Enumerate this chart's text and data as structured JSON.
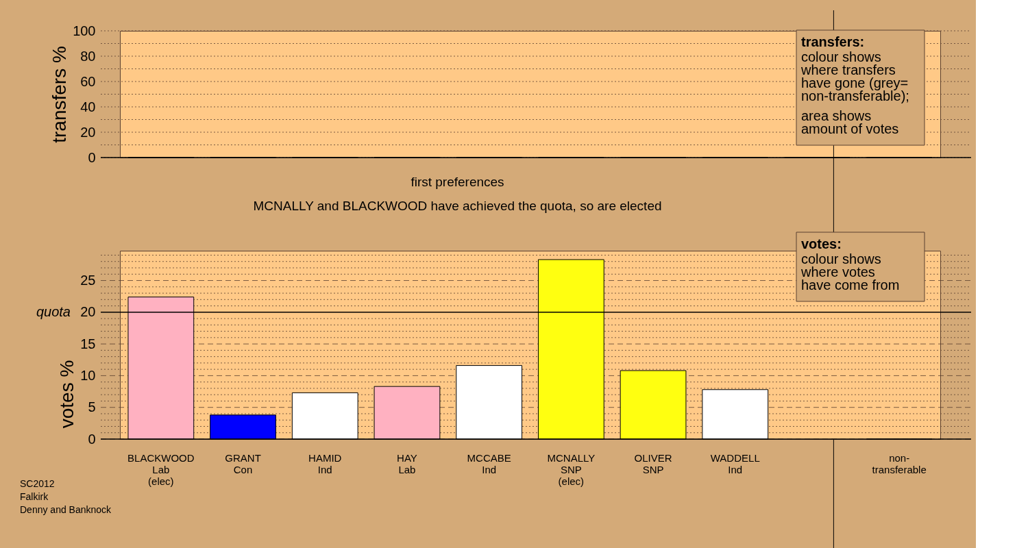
{
  "chart_data": [
    {
      "type": "bar",
      "ylabel": "transfers %",
      "categories": [
        null,
        null,
        null,
        null,
        null,
        null,
        null,
        null,
        null,
        null
      ],
      "values": [
        0,
        0,
        0,
        0,
        0,
        0,
        0,
        0,
        0,
        0
      ],
      "ylim": [
        0,
        100
      ],
      "yticks": [
        0,
        {
          "value": 10,
          "label": null
        },
        20,
        {
          "value": 30,
          "label": null
        },
        40,
        {
          "value": 50,
          "label": null
        },
        60,
        {
          "value": 70,
          "label": null
        },
        80,
        {
          "value": 90,
          "label": null
        },
        100
      ],
      "grid": "y",
      "tick_labels": "y",
      "annotations": [
        "transfers:\ncolour shows\nwhere transfers\nhave gone (grey=\nnon-transferable);\n\narea shows\namount of votes"
      ]
    },
    {
      "type": "bar",
      "title": "first preferences",
      "subtitle": "MCNALLY and BLACKWOOD have achieved the quota, so are elected",
      "ylabel": "votes %",
      "categories": [
        "BLACKWOOD\nLab\n(elec)",
        "GRANT\nCon",
        "HAMID\nInd",
        "HAY\nLab",
        "MCCABE\nInd",
        "MCNALLY\nSNP\n(elec)",
        "OLIVER\nSNP",
        "WADDELL\nInd",
        null,
        "non-\ntransferable"
      ],
      "values": [
        22.4,
        3.8,
        7.3,
        8.3,
        11.6,
        28.3,
        10.8,
        7.8,
        null,
        0
      ],
      "colors": [
        "#ffb1c1",
        "#0000ff",
        "#ffffff",
        "#ffb1c1",
        "#ffffff",
        "#ffff10",
        "#ffff10",
        "#ffffff",
        null,
        "#000000"
      ],
      "ylim": [
        0,
        29.7
      ],
      "yticks": [
        0,
        {
          "value": 1,
          "label": null
        },
        {
          "value": 2,
          "label": null
        },
        {
          "value": 3,
          "label": null
        },
        {
          "value": 4,
          "label": null
        },
        5,
        {
          "value": 6,
          "label": null
        },
        {
          "value": 7,
          "label": null
        },
        {
          "value": 8,
          "label": null
        },
        {
          "value": 9,
          "label": null
        },
        10,
        {
          "value": 11,
          "label": null
        },
        {
          "value": 12,
          "label": null
        },
        {
          "value": 13,
          "label": null
        },
        {
          "value": 14,
          "label": null
        },
        15,
        {
          "value": 16,
          "label": null
        },
        {
          "value": 17,
          "label": null
        },
        {
          "value": 18,
          "label": null
        },
        {
          "value": 19,
          "label": null
        },
        20,
        {
          "value": 21,
          "label": null
        },
        {
          "value": 22,
          "label": null
        },
        {
          "value": 23,
          "label": null
        },
        {
          "value": 24,
          "label": null
        },
        25,
        {
          "value": 26,
          "label": null
        },
        {
          "value": 27,
          "label": null
        },
        {
          "value": 28,
          "label": null
        },
        {
          "value": 29,
          "label": null
        }
      ],
      "grid": "y",
      "ref_lines": [
        {
          "axis": "y",
          "value": 20,
          "label": "quota",
          "color": "#000000",
          "line_style": "solid"
        }
      ],
      "annotations": [
        "votes:\ncolour shows\nwhere votes\nhave come from",
        "SC2012\nFalkirk\nDenny and Banknock"
      ]
    }
  ]
}
